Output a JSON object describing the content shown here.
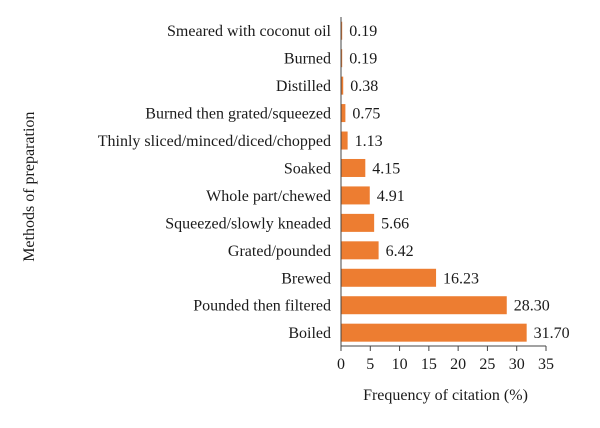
{
  "chart_data": {
    "type": "bar",
    "orientation": "horizontal",
    "categories": [
      "Smeared with coconut oil",
      "Burned",
      "Distilled",
      "Burned then grated/squeezed",
      "Thinly sliced/minced/diced/chopped",
      "Soaked",
      "Whole part/chewed",
      "Squeezed/slowly kneaded",
      "Grated/pounded",
      "Brewed",
      "Pounded then filtered",
      "Boiled"
    ],
    "values": [
      0.19,
      0.19,
      0.38,
      0.75,
      1.13,
      4.15,
      4.91,
      5.66,
      6.42,
      16.23,
      28.3,
      31.7
    ],
    "value_labels": [
      "0.19",
      "0.19",
      "0.38",
      "0.75",
      "1.13",
      "4.15",
      "4.91",
      "5.66",
      "6.42",
      "16.23",
      "28.30",
      "31.70"
    ],
    "title": "",
    "xlabel": "Frequency of citation (%)",
    "ylabel": "Methods of preparation",
    "xlim": [
      0,
      35
    ],
    "xticks": [
      "0",
      "5",
      "10",
      "15",
      "20",
      "25",
      "30",
      "35"
    ],
    "grid": false,
    "legend": "none",
    "bar_color": "#ed7d31"
  }
}
